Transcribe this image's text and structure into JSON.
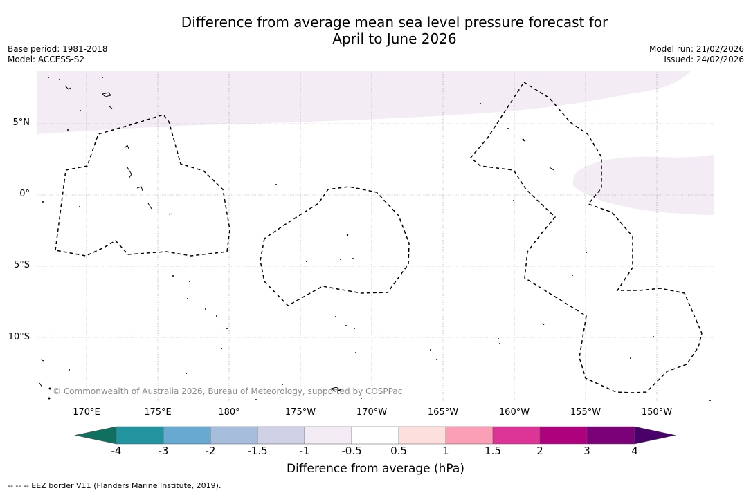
{
  "title": {
    "line1": "Difference from average mean sea level pressure forecast for",
    "line2": "April to June 2026"
  },
  "meta": {
    "base_period": "Base period: 1981-2018",
    "model": "Model: ACCESS-S2",
    "model_run": "Model run: 21/02/2026",
    "issued": "Issued: 24/02/2026"
  },
  "map": {
    "lat_labels": [
      "5°N",
      "0°",
      "5°S",
      "10°S"
    ],
    "lon_labels": [
      "170°E",
      "175°E",
      "180°",
      "175°W",
      "170°W",
      "165°W",
      "160°W",
      "155°W",
      "150°W"
    ],
    "copyright": "© Commonwealth of Australia 2026, Bureau of Meteorology, supported by COSPPac",
    "anomaly_fill_color": "#f3ecf5",
    "anomaly_category": "-1 to -0.5"
  },
  "colorbar": {
    "title": "Difference from average (hPa)",
    "tick_labels": [
      "-4",
      "-3",
      "-2",
      "-1.5",
      "-1",
      "-0.5",
      "0.5",
      "1",
      "1.5",
      "2",
      "3",
      "4"
    ],
    "colors": [
      "#0f7060",
      "#2194a0",
      "#67a9d1",
      "#a6bddb",
      "#d0d1e6",
      "#f3ecf5",
      "#ffffff",
      "#fde0dd",
      "#fa9fb5",
      "#dd3497",
      "#ae017e",
      "#7a0177",
      "#49006a"
    ]
  },
  "footnote": "-- -- -- EEZ border V11 (Flanders Marine Institute, 2019)."
}
